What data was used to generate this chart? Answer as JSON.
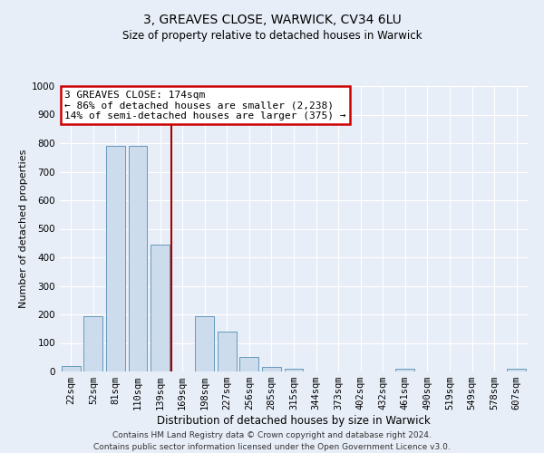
{
  "title": "3, GREAVES CLOSE, WARWICK, CV34 6LU",
  "subtitle": "Size of property relative to detached houses in Warwick",
  "xlabel": "Distribution of detached houses by size in Warwick",
  "ylabel": "Number of detached properties",
  "bar_labels": [
    "22sqm",
    "52sqm",
    "81sqm",
    "110sqm",
    "139sqm",
    "169sqm",
    "198sqm",
    "227sqm",
    "256sqm",
    "285sqm",
    "315sqm",
    "344sqm",
    "373sqm",
    "402sqm",
    "432sqm",
    "461sqm",
    "490sqm",
    "519sqm",
    "549sqm",
    "578sqm",
    "607sqm"
  ],
  "bar_values": [
    20,
    195,
    790,
    790,
    445,
    0,
    195,
    140,
    50,
    15,
    10,
    0,
    0,
    0,
    0,
    10,
    0,
    0,
    0,
    0,
    10
  ],
  "bar_color": "#ccdcec",
  "bar_edge_color": "#6699bb",
  "ylim": [
    0,
    1000
  ],
  "vline_x_index": 5,
  "vline_color": "#aa0000",
  "annotation_title": "3 GREAVES CLOSE: 174sqm",
  "annotation_line1": "← 86% of detached houses are smaller (2,238)",
  "annotation_line2": "14% of semi-detached houses are larger (375) →",
  "annotation_box_color": "#cc0000",
  "footer_line1": "Contains HM Land Registry data © Crown copyright and database right 2024.",
  "footer_line2": "Contains public sector information licensed under the Open Government Licence v3.0.",
  "background_color": "#e8eef8",
  "plot_bg_color": "#e8eef8",
  "grid_color": "#ffffff",
  "title_fontsize": 10,
  "subtitle_fontsize": 8.5,
  "ylabel_fontsize": 8,
  "xlabel_fontsize": 8.5,
  "tick_fontsize": 7.5,
  "annotation_fontsize": 8,
  "footer_fontsize": 6.5
}
